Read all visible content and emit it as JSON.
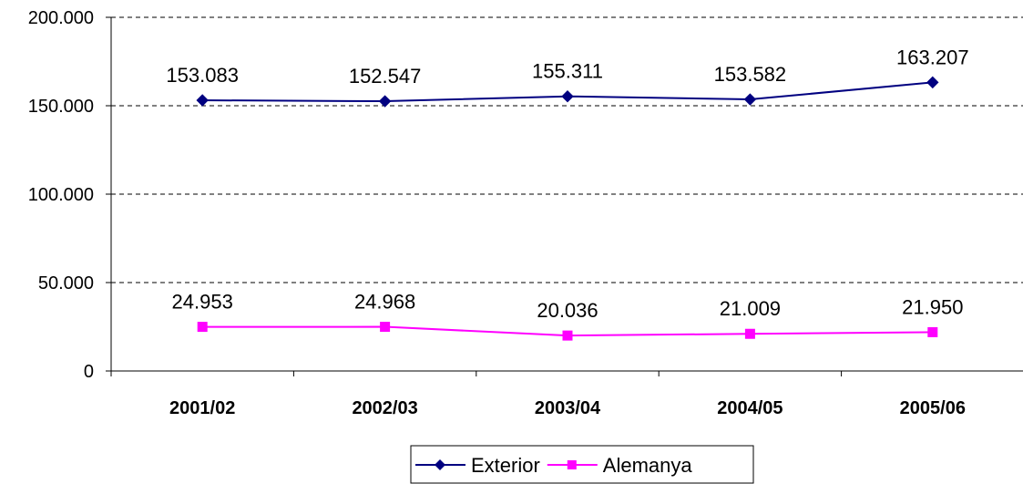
{
  "chart_data": {
    "type": "line",
    "categories": [
      "2001/02",
      "2002/03",
      "2003/04",
      "2004/05",
      "2005/06"
    ],
    "series": [
      {
        "name": "Exterior",
        "values": [
          153083,
          152547,
          155311,
          153582,
          163207
        ],
        "labels": [
          "153.083",
          "152.547",
          "155.311",
          "153.582",
          "163.207"
        ],
        "color": "#000080",
        "marker": "diamond"
      },
      {
        "name": "Alemanya",
        "values": [
          24953,
          24968,
          20036,
          21009,
          21950
        ],
        "labels": [
          "24.953",
          "24.968",
          "20.036",
          "21.009",
          "21.950"
        ],
        "color": "#ff00ff",
        "marker": "square"
      }
    ],
    "yticks": [
      0,
      50000,
      100000,
      150000,
      200000
    ],
    "ytick_labels": [
      "0",
      "50.000",
      "100.000",
      "150.000",
      "200.000"
    ],
    "ylim": [
      0,
      200000
    ],
    "grid": "horizontal dashed",
    "legend": "bottom-center"
  }
}
